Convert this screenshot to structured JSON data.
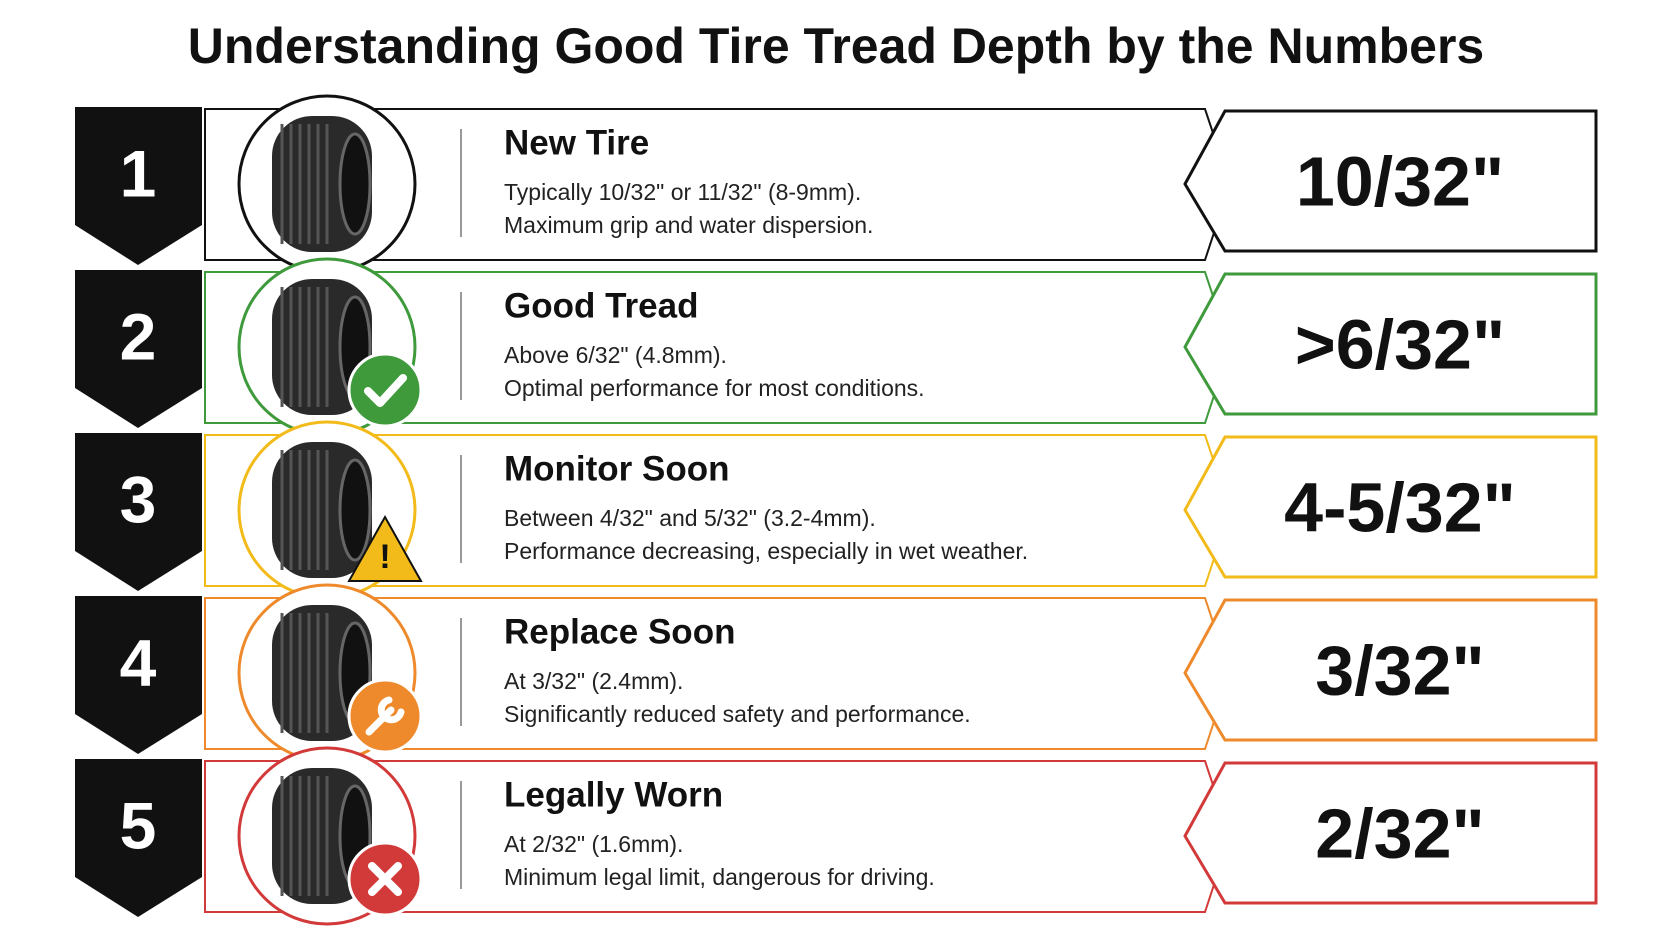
{
  "title": "Understanding Good Tire Tread Depth by the Numbers",
  "rows": [
    {
      "number": "1",
      "title": "New Tire",
      "lines": [
        "Typically 10/32\" or 11/32\" (8-9mm).",
        "Maximum grip and water dispersion."
      ],
      "value": "10/32\"",
      "color": "#111111"
    },
    {
      "number": "2",
      "title": "Good Tread",
      "lines": [
        "Above 6/32\" (4.8mm).",
        "Optimal performance for most conditions."
      ],
      "value": ">6/32\"",
      "color": "#3f9a3c"
    },
    {
      "number": "3",
      "title": "Monitor Soon",
      "lines": [
        "Between 4/32\" and 5/32\" (3.2-4mm).",
        "Performance decreasing, especially in wet weather."
      ],
      "value": "4-5/32\"",
      "color": "#f2bb1a"
    },
    {
      "number": "4",
      "title": "Replace Soon",
      "lines": [
        "At 3/32\" (2.4mm).",
        "Significantly reduced safety and performance."
      ],
      "value": "3/32\"",
      "color": "#ee8a2b"
    },
    {
      "number": "5",
      "title": "Legally Worn",
      "lines": [
        "At 2/32\" (1.6mm).",
        "Minimum legal limit, dangerous for driving."
      ],
      "value": "2/32\"",
      "color": "#d23a3a"
    }
  ]
}
